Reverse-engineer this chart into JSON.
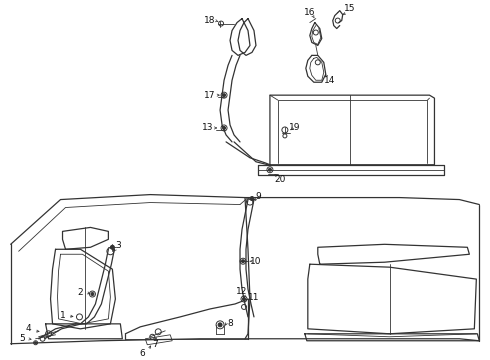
{
  "bg_color": "#ffffff",
  "line_color": "#333333",
  "label_color": "#111111",
  "label_fontsize": 6.5,
  "fig_width": 4.9,
  "fig_height": 3.6,
  "dpi": 100
}
